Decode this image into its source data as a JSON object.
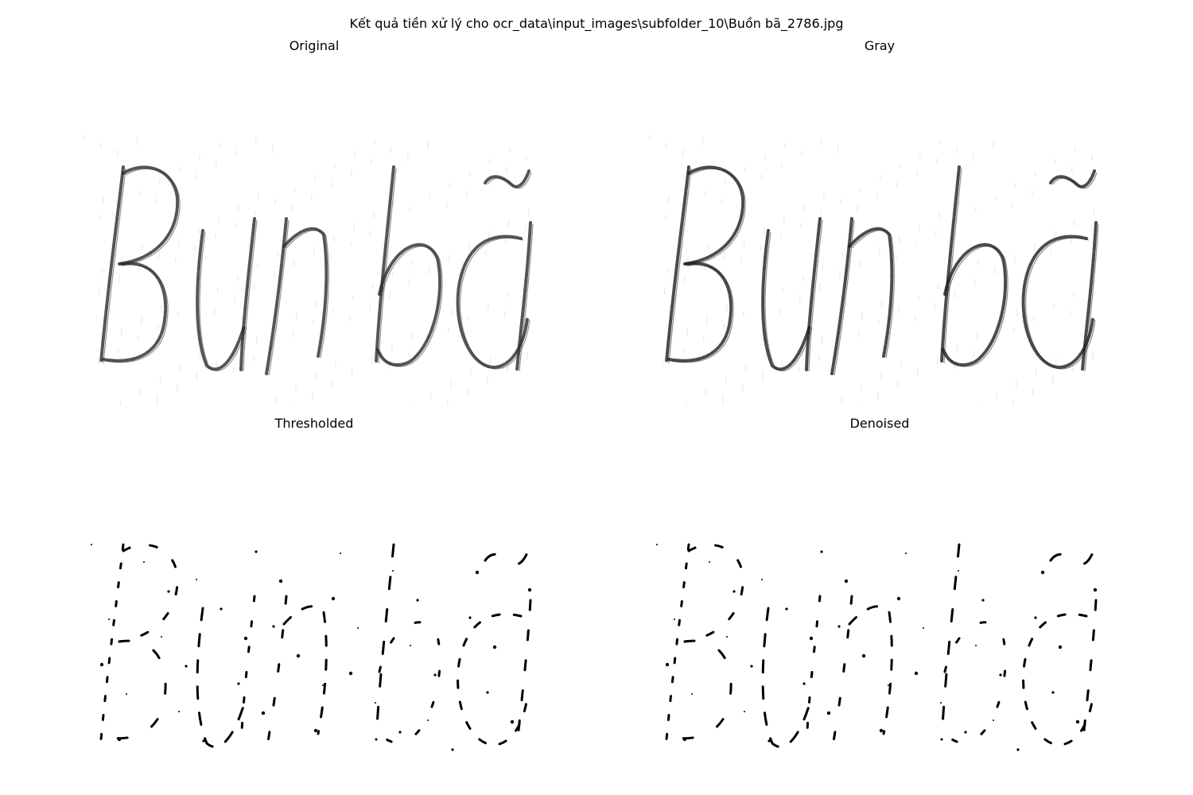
{
  "figure": {
    "title": "Kết quả tiền xử lý cho ocr_data\\input_images\\subfolder_10\\Buồn bã_2786.jpg"
  },
  "panels": [
    {
      "title": "Original",
      "style": "soft",
      "ink_color": "#2a2a2a"
    },
    {
      "title": "Gray",
      "style": "soft",
      "ink_color": "#1e1e1e"
    },
    {
      "title": "Thresholded",
      "style": "binary",
      "ink_color": "#000000"
    },
    {
      "title": "Denoised",
      "style": "binary",
      "ink_color": "#000000"
    }
  ]
}
